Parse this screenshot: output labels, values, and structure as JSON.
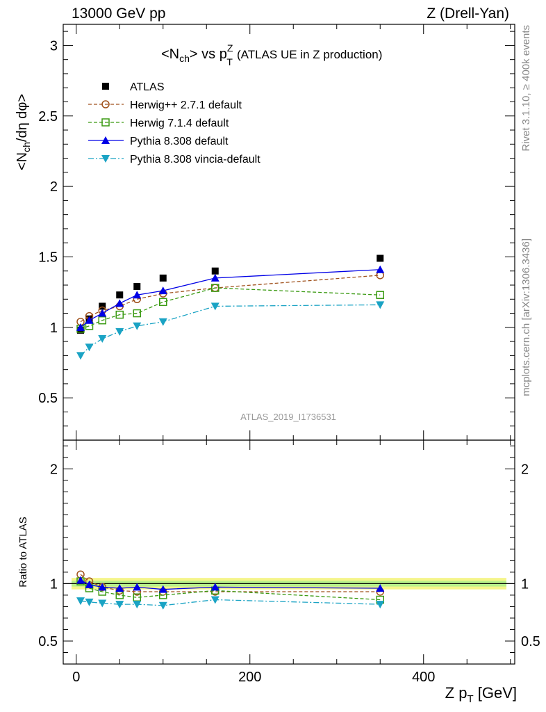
{
  "header": {
    "left": "13000 GeV pp",
    "right": "Z (Drell-Yan)"
  },
  "side": {
    "rivet": "Rivet 3.1.10, ≥ 400k events",
    "mcplots": "mcplots.cern.ch [arXiv:1306.3436]"
  },
  "watermark": "ATLAS_2019_I1736531",
  "chart_data": {
    "type": "scatter",
    "title": "<N_ch> vs p_T^Z (ATLAS UE in Z production)",
    "title_parts": {
      "a": "<N",
      "a_sub": "ch",
      "b": "> vs p",
      "b_sup": "Z",
      "b_sub": "T",
      "c": "(ATLAS UE in Z production)"
    },
    "ylabel_parts": {
      "a": "<N",
      "a_sub": "ch",
      "b": "/dη dφ>"
    },
    "xlabel_parts": {
      "a": "Z p",
      "a_sub": "T",
      "b": " [GeV]"
    },
    "ratio_ylabel": "Ratio to ATLAS",
    "xlim": [
      -15,
      505
    ],
    "ylim": [
      0.2,
      3.15
    ],
    "ratio_ylim": [
      0.3,
      2.25
    ],
    "x_ticks": [
      0,
      200,
      400
    ],
    "x_tick_labels": [
      "0",
      "200",
      "400"
    ],
    "y_ticks": [
      0.5,
      1,
      1.5,
      2,
      2.5,
      3
    ],
    "y_tick_labels": [
      "0.5",
      "1",
      "1.5",
      "2",
      "2.5",
      "3"
    ],
    "ratio_y_ticks": [
      0.5,
      1,
      2
    ],
    "ratio_y_tick_labels": [
      "0.5",
      "1",
      "2"
    ],
    "x": [
      5,
      15,
      30,
      50,
      70,
      100,
      160,
      350
    ],
    "legend_position": "top-left",
    "series": [
      {
        "name": "ATLAS",
        "color": "#000000",
        "marker": "square-filled",
        "line": "none",
        "values": [
          0.98,
          1.06,
          1.15,
          1.23,
          1.29,
          1.35,
          1.4,
          1.49
        ]
      },
      {
        "name": "Herwig++ 2.7.1 default",
        "color": "#a0521d",
        "marker": "circle-open",
        "line": "dashed",
        "values": [
          1.04,
          1.08,
          1.12,
          1.15,
          1.2,
          1.24,
          1.28,
          1.37
        ],
        "ratio": [
          1.08,
          1.02,
          0.97,
          0.94,
          0.93,
          0.93,
          0.93,
          0.93
        ]
      },
      {
        "name": "Herwig 7.1.4 default",
        "color": "#3a9a12",
        "marker": "square-open",
        "line": "dashed",
        "values": [
          0.99,
          1.01,
          1.05,
          1.09,
          1.1,
          1.18,
          1.28,
          1.23
        ],
        "ratio": [
          1.02,
          0.96,
          0.93,
          0.9,
          0.88,
          0.9,
          0.94,
          0.86
        ]
      },
      {
        "name": "Pythia 8.308 default",
        "color": "#0000e6",
        "marker": "triangle-up-filled",
        "line": "solid",
        "values": [
          1.0,
          1.05,
          1.1,
          1.17,
          1.23,
          1.26,
          1.35,
          1.41
        ],
        "ratio": [
          1.03,
          0.99,
          0.97,
          0.96,
          0.97,
          0.95,
          0.97,
          0.96
        ]
      },
      {
        "name": "Pythia 8.308 vincia-default",
        "color": "#1aa3c4",
        "marker": "triangle-down-filled",
        "line": "dashdot",
        "values": [
          0.8,
          0.86,
          0.92,
          0.97,
          1.01,
          1.04,
          1.15,
          1.16
        ],
        "ratio": [
          0.85,
          0.84,
          0.83,
          0.82,
          0.82,
          0.81,
          0.86,
          0.82
        ]
      }
    ]
  }
}
